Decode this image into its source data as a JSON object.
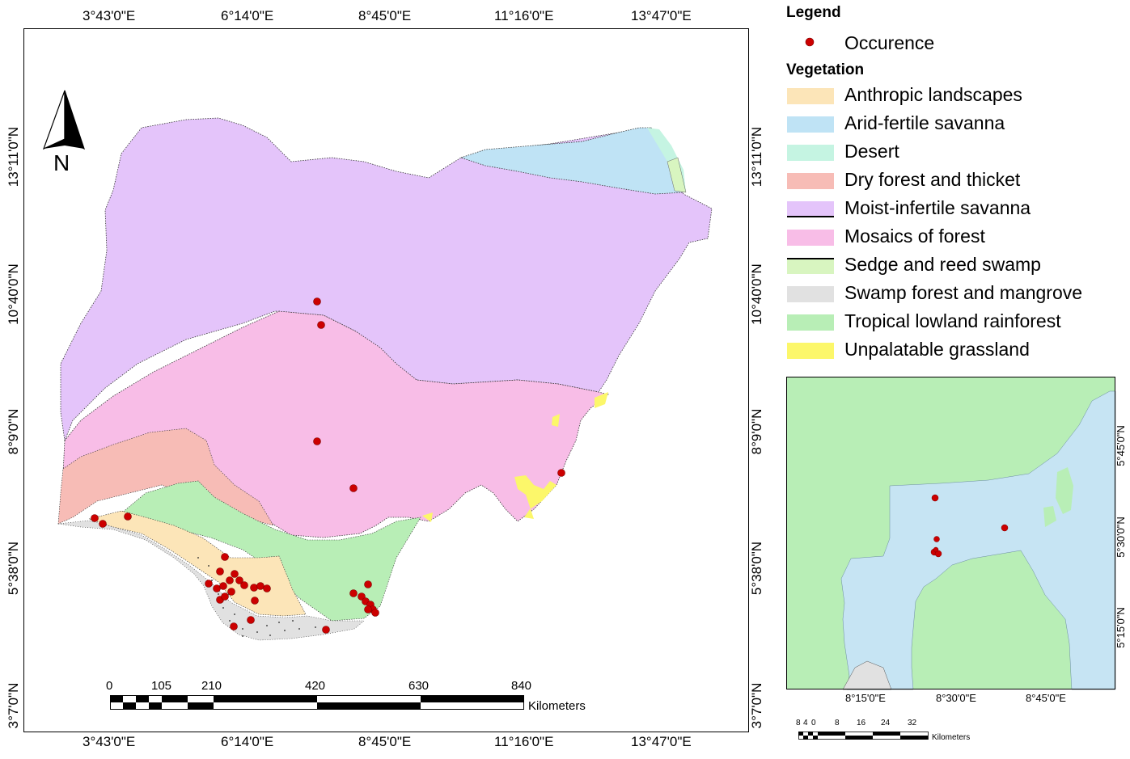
{
  "main_map": {
    "top_longitudes": [
      "3°43'0\"E",
      "6°14'0\"E",
      "8°45'0\"E",
      "11°16'0\"E",
      "13°47'0\"E"
    ],
    "bottom_longitudes": [
      "3°43'0\"E",
      "6°14'0\"E",
      "8°45'0\"E",
      "11°16'0\"E",
      "13°47'0\"E"
    ],
    "latitudes": [
      "13°11'0\"N",
      "10°40'0\"N",
      "8°9'0\"N",
      "5°38'0\"N",
      "3°7'0\"N"
    ],
    "north_arrow": "N",
    "scale": {
      "ticks": [
        "0",
        "105",
        "210",
        "420",
        "630",
        "840"
      ],
      "unit": "Kilometers"
    }
  },
  "legend": {
    "title": "Legend",
    "occurrence_label": "Occurence",
    "vegetation_title": "Vegetation",
    "classes": [
      {
        "label": "Anthropic landscapes",
        "color": "#fce5b8"
      },
      {
        "label": "Arid-fertile savanna",
        "color": "#bfe3f5"
      },
      {
        "label": "Desert",
        "color": "#c5f4e2"
      },
      {
        "label": "Dry forest and thicket",
        "color": "#f7bcb6"
      },
      {
        "label": "Moist-infertile savanna",
        "color": "#e4c4fa"
      },
      {
        "label": "Mosaics of forest",
        "color": "#f8bde7"
      },
      {
        "label": "Sedge and reed swamp",
        "color": "#d8f5c0"
      },
      {
        "label": "Swamp forest and mangrove",
        "color": "#e1e1e1"
      },
      {
        "label": "Tropical lowland rainforest",
        "color": "#b8eeb6"
      },
      {
        "label": "Unpalatable grassland",
        "color": "#fcf76a"
      }
    ],
    "occurrence_color": "#cc0000"
  },
  "inset_map": {
    "longitudes": [
      "8°15'0\"E",
      "8°30'0\"E",
      "8°45'0\"E"
    ],
    "latitudes": [
      "5°45'0\"N",
      "5°30'0\"N",
      "5°15'0\"N"
    ],
    "scale": {
      "ticks": [
        "8",
        "4",
        "0",
        "8",
        "16",
        "24",
        "32"
      ],
      "unit": "Kilometers"
    }
  }
}
